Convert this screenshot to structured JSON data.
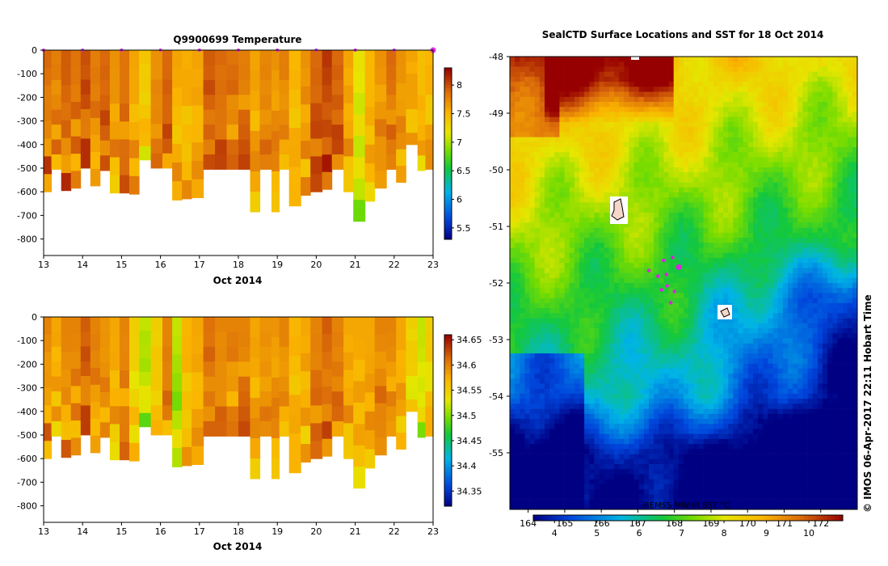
{
  "chart_data": [
    {
      "type": "heatmap",
      "title": "Q9900699  Temperature",
      "xlabel": "Oct 2014",
      "ylabel": "",
      "x_ticks": [
        "13",
        "14",
        "15",
        "16",
        "17",
        "18",
        "19",
        "20",
        "21",
        "22",
        "23"
      ],
      "y_ticks": [
        "0",
        "-100",
        "-200",
        "-300",
        "-400",
        "-500",
        "-600",
        "-700",
        "-800"
      ],
      "xlim": [
        13,
        23
      ],
      "ylim": [
        -870,
        0
      ],
      "colorbar_ticks": [
        "8",
        "7.5",
        "7",
        "6.5",
        "6",
        "5.5"
      ],
      "colorbar_range": [
        5.3,
        8.3
      ],
      "profiles": [
        {
          "day": 13.0,
          "depth": 600,
          "value": 7.9
        },
        {
          "day": 13.2,
          "depth": 505,
          "value": 7.8
        },
        {
          "day": 13.45,
          "depth": 595,
          "value": 7.95
        },
        {
          "day": 13.7,
          "depth": 585,
          "value": 7.85
        },
        {
          "day": 13.95,
          "depth": 500,
          "value": 8.0
        },
        {
          "day": 14.2,
          "depth": 575,
          "value": 7.8
        },
        {
          "day": 14.45,
          "depth": 510,
          "value": 7.9
        },
        {
          "day": 14.7,
          "depth": 605,
          "value": 7.7
        },
        {
          "day": 14.95,
          "depth": 605,
          "value": 7.85
        },
        {
          "day": 15.2,
          "depth": 610,
          "value": 7.6
        },
        {
          "day": 15.45,
          "depth": 465,
          "value": 7.4
        },
        {
          "day": 15.75,
          "depth": 500,
          "value": 7.7
        },
        {
          "day": 16.05,
          "depth": 500,
          "value": 7.9
        },
        {
          "day": 16.3,
          "depth": 635,
          "value": 7.6
        },
        {
          "day": 16.55,
          "depth": 630,
          "value": 7.55
        },
        {
          "day": 16.8,
          "depth": 625,
          "value": 7.6
        },
        {
          "day": 17.1,
          "depth": 505,
          "value": 7.95
        },
        {
          "day": 17.4,
          "depth": 505,
          "value": 7.9
        },
        {
          "day": 17.7,
          "depth": 505,
          "value": 7.85
        },
        {
          "day": 18.0,
          "depth": 505,
          "value": 7.8
        },
        {
          "day": 18.3,
          "depth": 685,
          "value": 7.6
        },
        {
          "day": 18.55,
          "depth": 505,
          "value": 7.75
        },
        {
          "day": 18.85,
          "depth": 685,
          "value": 7.7
        },
        {
          "day": 19.05,
          "depth": 505,
          "value": 7.8
        },
        {
          "day": 19.3,
          "depth": 660,
          "value": 7.5
        },
        {
          "day": 19.6,
          "depth": 615,
          "value": 7.7
        },
        {
          "day": 19.85,
          "depth": 600,
          "value": 7.9
        },
        {
          "day": 20.15,
          "depth": 590,
          "value": 8.1
        },
        {
          "day": 20.4,
          "depth": 505,
          "value": 7.9
        },
        {
          "day": 20.7,
          "depth": 600,
          "value": 7.6
        },
        {
          "day": 20.95,
          "depth": 725,
          "value": 7.2
        },
        {
          "day": 21.25,
          "depth": 640,
          "value": 7.5
        },
        {
          "day": 21.5,
          "depth": 585,
          "value": 7.7
        },
        {
          "day": 21.8,
          "depth": 505,
          "value": 7.9
        },
        {
          "day": 22.05,
          "depth": 560,
          "value": 7.7
        },
        {
          "day": 22.3,
          "depth": 400,
          "value": 7.6
        },
        {
          "day": 22.6,
          "depth": 510,
          "value": 7.45
        },
        {
          "day": 22.8,
          "depth": 505,
          "value": 7.5
        }
      ]
    },
    {
      "type": "heatmap",
      "title": "",
      "xlabel": "Oct 2014",
      "ylabel": "",
      "x_ticks": [
        "13",
        "14",
        "15",
        "16",
        "17",
        "18",
        "19",
        "20",
        "21",
        "22",
        "23"
      ],
      "y_ticks": [
        "0",
        "-100",
        "-200",
        "-300",
        "-400",
        "-500",
        "-600",
        "-700",
        "-800"
      ],
      "xlim": [
        13,
        23
      ],
      "ylim": [
        -870,
        0
      ],
      "colorbar_ticks": [
        "34.65",
        "34.6",
        "34.55",
        "34.5",
        "34.45",
        "34.4",
        "34.35"
      ],
      "colorbar_range": [
        34.32,
        34.66
      ],
      "profiles": [
        {
          "day": 13.0,
          "depth": 600,
          "value": 34.6
        },
        {
          "day": 13.2,
          "depth": 505,
          "value": 34.58
        },
        {
          "day": 13.45,
          "depth": 595,
          "value": 34.6
        },
        {
          "day": 13.7,
          "depth": 585,
          "value": 34.6
        },
        {
          "day": 13.95,
          "depth": 500,
          "value": 34.62
        },
        {
          "day": 14.2,
          "depth": 575,
          "value": 34.6
        },
        {
          "day": 14.45,
          "depth": 510,
          "value": 34.59
        },
        {
          "day": 14.7,
          "depth": 605,
          "value": 34.58
        },
        {
          "day": 14.95,
          "depth": 605,
          "value": 34.6
        },
        {
          "day": 15.2,
          "depth": 610,
          "value": 34.55
        },
        {
          "day": 15.45,
          "depth": 465,
          "value": 34.52
        },
        {
          "day": 15.75,
          "depth": 500,
          "value": 34.55
        },
        {
          "day": 16.05,
          "depth": 500,
          "value": 34.6
        },
        {
          "day": 16.3,
          "depth": 635,
          "value": 34.52
        },
        {
          "day": 16.55,
          "depth": 630,
          "value": 34.57
        },
        {
          "day": 16.8,
          "depth": 625,
          "value": 34.58
        },
        {
          "day": 17.1,
          "depth": 505,
          "value": 34.61
        },
        {
          "day": 17.4,
          "depth": 505,
          "value": 34.6
        },
        {
          "day": 17.7,
          "depth": 505,
          "value": 34.6
        },
        {
          "day": 18.0,
          "depth": 505,
          "value": 34.6
        },
        {
          "day": 18.3,
          "depth": 685,
          "value": 34.58
        },
        {
          "day": 18.55,
          "depth": 505,
          "value": 34.59
        },
        {
          "day": 18.85,
          "depth": 685,
          "value": 34.59
        },
        {
          "day": 19.05,
          "depth": 505,
          "value": 34.6
        },
        {
          "day": 19.3,
          "depth": 660,
          "value": 34.57
        },
        {
          "day": 19.6,
          "depth": 615,
          "value": 34.58
        },
        {
          "day": 19.85,
          "depth": 600,
          "value": 34.6
        },
        {
          "day": 20.15,
          "depth": 590,
          "value": 34.62
        },
        {
          "day": 20.4,
          "depth": 505,
          "value": 34.6
        },
        {
          "day": 20.7,
          "depth": 600,
          "value": 34.58
        },
        {
          "day": 20.95,
          "depth": 725,
          "value": 34.58
        },
        {
          "day": 21.25,
          "depth": 640,
          "value": 34.58
        },
        {
          "day": 21.5,
          "depth": 585,
          "value": 34.6
        },
        {
          "day": 21.8,
          "depth": 505,
          "value": 34.6
        },
        {
          "day": 22.05,
          "depth": 560,
          "value": 34.58
        },
        {
          "day": 22.3,
          "depth": 400,
          "value": 34.55
        },
        {
          "day": 22.6,
          "depth": 510,
          "value": 34.52
        },
        {
          "day": 22.8,
          "depth": 505,
          "value": 34.55
        }
      ]
    },
    {
      "type": "heatmap",
      "title": "SealCTD Surface Locations and SST for 18 Oct 2014",
      "xlabel": "",
      "ylabel": "",
      "x_ticks": [
        "164",
        "165",
        "166",
        "167",
        "168",
        "169",
        "170",
        "171",
        "172"
      ],
      "xlim": [
        163.5,
        173.0
      ],
      "y_ticks": [
        "-48",
        "-49",
        "-50",
        "-51",
        "-52",
        "-53",
        "-54",
        "-55"
      ],
      "ylim": [
        -56.0,
        -48.0
      ],
      "colorbar_label": "REMSS MW-IR SST °C",
      "colorbar_ticks": [
        "4",
        "5",
        "6",
        "7",
        "8",
        "9",
        "10"
      ],
      "colorbar_range": [
        3.5,
        10.8
      ],
      "locations": [
        {
          "lon": 168.12,
          "lat": -51.72
        },
        {
          "lon": 167.78,
          "lat": -51.85
        },
        {
          "lon": 167.3,
          "lat": -51.78
        },
        {
          "lon": 167.55,
          "lat": -51.88
        },
        {
          "lon": 168.0,
          "lat": -52.15
        },
        {
          "lon": 167.8,
          "lat": -52.05
        },
        {
          "lon": 167.9,
          "lat": -52.35
        },
        {
          "lon": 167.65,
          "lat": -52.12
        },
        {
          "lon": 167.95,
          "lat": -51.55
        },
        {
          "lon": 167.7,
          "lat": -51.6
        }
      ]
    }
  ],
  "footer": {
    "watermark": "© IMOS 06-Apr-2017 22:11 Hobart Time"
  }
}
